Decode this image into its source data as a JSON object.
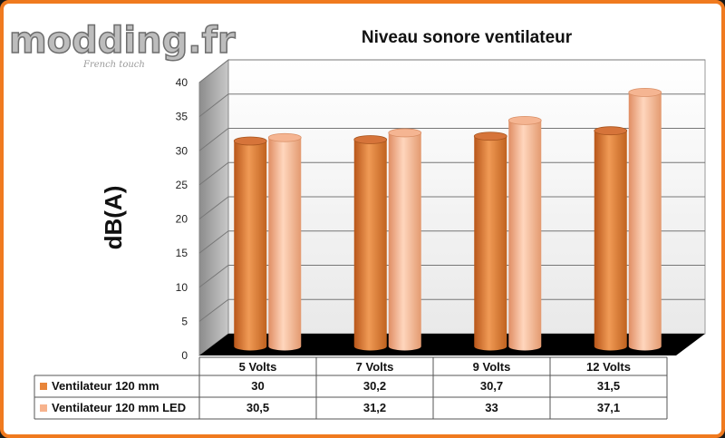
{
  "logo": {
    "text": "modding.fr",
    "tagline": "French touch"
  },
  "chart_data": {
    "type": "bar",
    "title": "Niveau sonore ventilateur",
    "xlabel": "",
    "ylabel": "dB(A)",
    "ylim": [
      0,
      40
    ],
    "yticks": [
      "0",
      "5",
      "10",
      "15",
      "20",
      "25",
      "30",
      "35",
      "40"
    ],
    "grid": true,
    "categories": [
      "5 Volts",
      "7 Volts",
      "9 Volts",
      "12 Volts"
    ],
    "series": [
      {
        "name": "Ventilateur 120 mm",
        "values": [
          30,
          30.2,
          30.7,
          31.5
        ],
        "labels": [
          "30",
          "30,2",
          "30,7",
          "31,5"
        ],
        "color": "#e8853a"
      },
      {
        "name": "Ventilateur 120 mm LED",
        "values": [
          30.5,
          31.2,
          33,
          37.1
        ],
        "labels": [
          "30,5",
          "31,2",
          "33",
          "37,1"
        ],
        "color": "#f7b38d"
      }
    ],
    "legend": "data-table"
  },
  "colors": {
    "frame": "#f07a1f",
    "floor": "#000000",
    "wall": "#a9a9a9"
  }
}
